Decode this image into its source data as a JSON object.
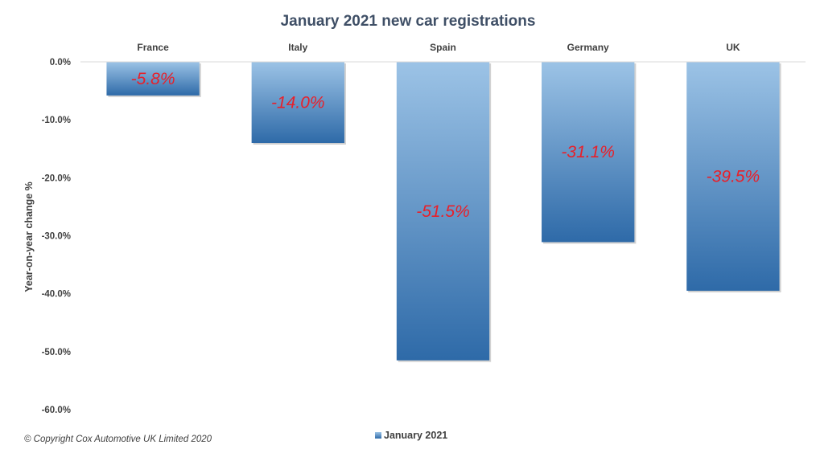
{
  "chart_data": {
    "type": "bar",
    "title": "January 2021 new car registrations",
    "categories": [
      "France",
      "Italy",
      "Spain",
      "Germany",
      "UK"
    ],
    "series": [
      {
        "name": "January 2021",
        "values": [
          -5.8,
          -14.0,
          -51.5,
          -31.1,
          -39.5
        ]
      }
    ],
    "data_labels": [
      "-5.8%",
      "-14.0%",
      "-51.5%",
      "-31.1%",
      "-39.5%"
    ],
    "xlabel": "",
    "ylabel": "Year-on-year change %",
    "ylim": [
      -60,
      0
    ],
    "yticks": [
      0,
      -10,
      -20,
      -30,
      -40,
      -50,
      -60
    ],
    "ytick_labels": [
      "0.0%",
      "-10.0%",
      "-20.0%",
      "-30.0%",
      "-40.0%",
      "-50.0%",
      "-60.0%"
    ],
    "category_axis_position": "top",
    "grid": false,
    "legend": "bottom-center",
    "bar_gradient": {
      "top": "#9cc3e6",
      "bottom": "#2e6aa8"
    },
    "data_label_color": "#e8202a"
  },
  "footer": {
    "copyright": "© Copyright Cox Automotive UK Limited 2020"
  }
}
